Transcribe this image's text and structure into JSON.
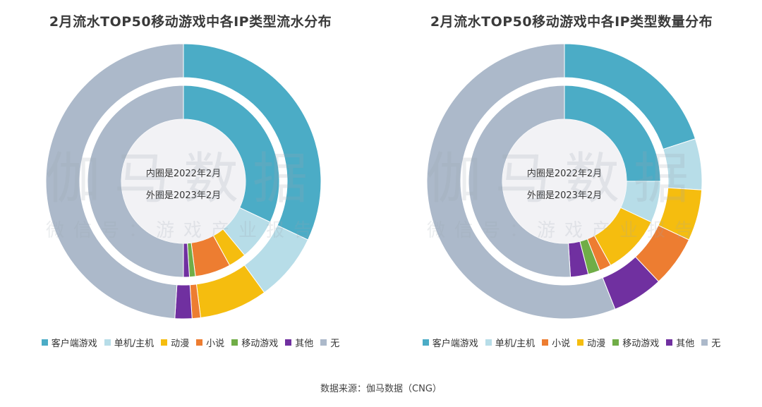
{
  "source": "数据来源：伽马数据（CNG）",
  "watermark": {
    "main": "伽马数据",
    "sub": "微信号：游戏产业报告"
  },
  "center_labels": [
    "内圈是2022年2月",
    "外圈是2023年2月"
  ],
  "categories": [
    {
      "name": "客户端游戏",
      "color": "#4bacc6"
    },
    {
      "name": "单机/主机",
      "color": "#b7dde8"
    },
    {
      "name": "动漫",
      "color": "#f5bd0f"
    },
    {
      "name": "小说",
      "color": "#ed7d31"
    },
    {
      "name": "移动游戏",
      "color": "#70ad47"
    },
    {
      "name": "其他",
      "color": "#7030a0"
    },
    {
      "name": "无",
      "color": "#acb9ca"
    }
  ],
  "chart_data": [
    {
      "type": "pie",
      "subtype": "nested-donut",
      "title": "2月流水TOP50移动游戏中各IP类型流水分布",
      "legend_order": [
        "客户端游戏",
        "单机/主机",
        "动漫",
        "小说",
        "移动游戏",
        "其他",
        "无"
      ],
      "series": [
        {
          "ring": "inner",
          "values": {
            "客户端游戏": 32,
            "单机/主机": 7,
            "动漫": 3,
            "小说": 6,
            "移动游戏": 1,
            "其他": 1,
            "无": 50
          }
        },
        {
          "ring": "outer",
          "values": {
            "客户端游戏": 32,
            "单机/主机": 8,
            "动漫": 8,
            "小说": 1,
            "移动游戏": 0,
            "其他": 2,
            "无": 49
          }
        }
      ]
    },
    {
      "type": "pie",
      "subtype": "nested-donut",
      "title": "2月流水TOP50移动游戏中各IP类型数量分布",
      "legend_order": [
        "客户端游戏",
        "单机/主机",
        "小说",
        "动漫",
        "移动游戏",
        "其他",
        "无"
      ],
      "series": [
        {
          "ring": "inner",
          "values": {
            "客户端游戏": 25,
            "单机/主机": 7,
            "动漫": 10,
            "小说": 2,
            "移动游戏": 2,
            "其他": 3,
            "无": 51
          }
        },
        {
          "ring": "outer",
          "values": {
            "客户端游戏": 20,
            "单机/主机": 6,
            "动漫": 6,
            "小说": 6,
            "移动游戏": 0,
            "其他": 6,
            "无": 56
          }
        }
      ]
    }
  ]
}
